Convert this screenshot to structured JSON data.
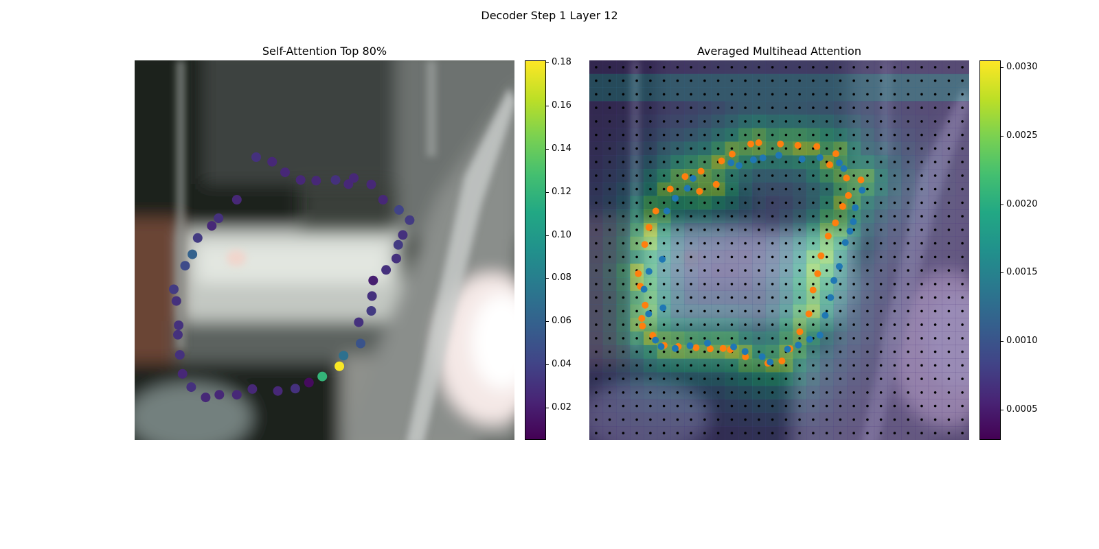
{
  "figure": {
    "suptitle": "Decoder Step 1 Layer 12"
  },
  "chart_data": [
    {
      "type": "scatter",
      "title": "Self-Attention Top 80%",
      "background": "blurred photo crop (car window / door)",
      "colormap": "viridis",
      "colorbar": {
        "min": 0.005,
        "max": 0.181,
        "ticks": [
          0.02,
          0.04,
          0.06,
          0.08,
          0.1,
          0.12,
          0.14,
          0.16,
          0.18
        ],
        "tick_labels": [
          "0.02",
          "0.04",
          "0.06",
          "0.08",
          "0.10",
          "0.12",
          "0.14",
          "0.16",
          "0.18"
        ]
      },
      "xlim": [
        0,
        100
      ],
      "ylim": [
        0,
        100
      ],
      "points": [
        {
          "x": 32.0,
          "y": 74.5,
          "v": 0.03
        },
        {
          "x": 36.2,
          "y": 73.3,
          "v": 0.025
        },
        {
          "x": 39.6,
          "y": 70.5,
          "v": 0.025
        },
        {
          "x": 43.7,
          "y": 68.5,
          "v": 0.025
        },
        {
          "x": 47.8,
          "y": 68.3,
          "v": 0.025
        },
        {
          "x": 52.9,
          "y": 68.5,
          "v": 0.03
        },
        {
          "x": 56.3,
          "y": 67.4,
          "v": 0.025
        },
        {
          "x": 57.7,
          "y": 69.0,
          "v": 0.025
        },
        {
          "x": 62.3,
          "y": 67.3,
          "v": 0.025
        },
        {
          "x": 65.4,
          "y": 63.3,
          "v": 0.025
        },
        {
          "x": 69.6,
          "y": 60.6,
          "v": 0.04
        },
        {
          "x": 72.4,
          "y": 57.9,
          "v": 0.035
        },
        {
          "x": 70.6,
          "y": 54.0,
          "v": 0.03
        },
        {
          "x": 69.4,
          "y": 51.4,
          "v": 0.035
        },
        {
          "x": 68.9,
          "y": 47.8,
          "v": 0.03
        },
        {
          "x": 66.2,
          "y": 44.8,
          "v": 0.03
        },
        {
          "x": 62.8,
          "y": 42.0,
          "v": 0.02
        },
        {
          "x": 62.5,
          "y": 37.9,
          "v": 0.03
        },
        {
          "x": 62.3,
          "y": 34.0,
          "v": 0.035
        },
        {
          "x": 59.0,
          "y": 31.0,
          "v": 0.03
        },
        {
          "x": 59.5,
          "y": 25.4,
          "v": 0.05
        },
        {
          "x": 55.0,
          "y": 22.2,
          "v": 0.07
        },
        {
          "x": 53.9,
          "y": 19.4,
          "v": 0.18
        },
        {
          "x": 49.4,
          "y": 16.7,
          "v": 0.12
        },
        {
          "x": 45.9,
          "y": 15.1,
          "v": 0.01
        },
        {
          "x": 42.3,
          "y": 13.5,
          "v": 0.03
        },
        {
          "x": 37.7,
          "y": 12.9,
          "v": 0.025
        },
        {
          "x": 31.0,
          "y": 13.4,
          "v": 0.025
        },
        {
          "x": 26.9,
          "y": 11.9,
          "v": 0.025
        },
        {
          "x": 22.3,
          "y": 11.9,
          "v": 0.025
        },
        {
          "x": 18.7,
          "y": 11.2,
          "v": 0.025
        },
        {
          "x": 14.9,
          "y": 13.9,
          "v": 0.03
        },
        {
          "x": 12.6,
          "y": 17.4,
          "v": 0.025
        },
        {
          "x": 11.9,
          "y": 22.4,
          "v": 0.03
        },
        {
          "x": 11.4,
          "y": 27.7,
          "v": 0.03
        },
        {
          "x": 11.6,
          "y": 30.2,
          "v": 0.03
        },
        {
          "x": 11.0,
          "y": 36.6,
          "v": 0.03
        },
        {
          "x": 10.3,
          "y": 39.7,
          "v": 0.035
        },
        {
          "x": 13.3,
          "y": 45.9,
          "v": 0.045
        },
        {
          "x": 15.2,
          "y": 48.9,
          "v": 0.06
        },
        {
          "x": 16.6,
          "y": 53.2,
          "v": 0.035
        },
        {
          "x": 20.3,
          "y": 56.4,
          "v": 0.025
        },
        {
          "x": 22.1,
          "y": 58.4,
          "v": 0.03
        },
        {
          "x": 26.9,
          "y": 63.3,
          "v": 0.025
        }
      ]
    },
    {
      "type": "heatmap",
      "title": "Averaged Multihead Attention",
      "background": "same photo crop blended with attention heatmap",
      "colormap": "viridis",
      "colorbar": {
        "min": 0.00028,
        "max": 0.00305,
        "ticks": [
          0.0005,
          0.001,
          0.0015,
          0.002,
          0.0025,
          0.003
        ],
        "tick_labels": [
          "0.0005",
          "0.0010",
          "0.0015",
          "0.0020",
          "0.0025",
          "0.0030"
        ]
      },
      "grid_size": 28,
      "xlim": [
        0,
        100
      ],
      "ylim": [
        0,
        100
      ],
      "orange_points": [
        {
          "x": 34.8,
          "y": 73.5
        },
        {
          "x": 37.6,
          "y": 75.3
        },
        {
          "x": 42.5,
          "y": 78.0
        },
        {
          "x": 44.6,
          "y": 78.3
        },
        {
          "x": 50.3,
          "y": 78.0
        },
        {
          "x": 54.9,
          "y": 77.6
        },
        {
          "x": 59.9,
          "y": 77.3
        },
        {
          "x": 64.9,
          "y": 75.4
        },
        {
          "x": 63.3,
          "y": 72.5
        },
        {
          "x": 67.7,
          "y": 69.0
        },
        {
          "x": 71.5,
          "y": 68.5
        },
        {
          "x": 68.2,
          "y": 64.4
        },
        {
          "x": 66.7,
          "y": 61.5
        },
        {
          "x": 64.8,
          "y": 57.2
        },
        {
          "x": 62.9,
          "y": 53.7
        },
        {
          "x": 61.0,
          "y": 48.5
        },
        {
          "x": 60.1,
          "y": 43.8
        },
        {
          "x": 58.9,
          "y": 39.5
        },
        {
          "x": 57.8,
          "y": 33.2
        },
        {
          "x": 55.4,
          "y": 28.5
        },
        {
          "x": 52.8,
          "y": 24.0
        },
        {
          "x": 50.7,
          "y": 20.8
        },
        {
          "x": 47.0,
          "y": 20.2
        },
        {
          "x": 41.1,
          "y": 21.9
        },
        {
          "x": 37.1,
          "y": 23.8
        },
        {
          "x": 35.2,
          "y": 24.1
        },
        {
          "x": 31.8,
          "y": 24.0
        },
        {
          "x": 28.1,
          "y": 24.3
        },
        {
          "x": 23.4,
          "y": 24.6
        },
        {
          "x": 19.7,
          "y": 24.9
        },
        {
          "x": 16.7,
          "y": 27.5
        },
        {
          "x": 14.0,
          "y": 30.0
        },
        {
          "x": 13.8,
          "y": 32.0
        },
        {
          "x": 14.7,
          "y": 35.5
        },
        {
          "x": 13.4,
          "y": 40.5
        },
        {
          "x": 12.9,
          "y": 43.8
        },
        {
          "x": 14.6,
          "y": 51.5
        },
        {
          "x": 15.7,
          "y": 56.0
        },
        {
          "x": 17.5,
          "y": 60.3
        },
        {
          "x": 21.3,
          "y": 66.1
        },
        {
          "x": 25.2,
          "y": 69.4
        },
        {
          "x": 29.4,
          "y": 70.8
        },
        {
          "x": 33.4,
          "y": 67.3
        },
        {
          "x": 29.0,
          "y": 65.5
        }
      ],
      "blue_points": [
        {
          "x": 37.3,
          "y": 73.0
        },
        {
          "x": 39.4,
          "y": 72.3
        },
        {
          "x": 43.2,
          "y": 73.8
        },
        {
          "x": 45.7,
          "y": 74.3
        },
        {
          "x": 49.9,
          "y": 75.0
        },
        {
          "x": 56.0,
          "y": 74.0
        },
        {
          "x": 60.7,
          "y": 74.4
        },
        {
          "x": 65.8,
          "y": 73.0
        },
        {
          "x": 67.0,
          "y": 71.5
        },
        {
          "x": 71.8,
          "y": 65.8
        },
        {
          "x": 70.0,
          "y": 61.2
        },
        {
          "x": 69.5,
          "y": 57.5
        },
        {
          "x": 68.6,
          "y": 55.0
        },
        {
          "x": 67.4,
          "y": 52.0
        },
        {
          "x": 65.8,
          "y": 45.7
        },
        {
          "x": 64.4,
          "y": 42.0
        },
        {
          "x": 63.5,
          "y": 37.5
        },
        {
          "x": 62.1,
          "y": 32.8
        },
        {
          "x": 60.7,
          "y": 27.6
        },
        {
          "x": 58.0,
          "y": 26.5
        },
        {
          "x": 55.0,
          "y": 25.0
        },
        {
          "x": 52.2,
          "y": 23.9
        },
        {
          "x": 47.6,
          "y": 20.5
        },
        {
          "x": 45.5,
          "y": 21.9
        },
        {
          "x": 41.0,
          "y": 23.3
        },
        {
          "x": 38.0,
          "y": 24.5
        },
        {
          "x": 31.1,
          "y": 25.5
        },
        {
          "x": 26.5,
          "y": 24.8
        },
        {
          "x": 22.6,
          "y": 24.1
        },
        {
          "x": 18.9,
          "y": 24.6
        },
        {
          "x": 17.4,
          "y": 26.3
        },
        {
          "x": 15.6,
          "y": 33.2
        },
        {
          "x": 19.4,
          "y": 34.8
        },
        {
          "x": 14.4,
          "y": 39.7
        },
        {
          "x": 15.7,
          "y": 44.4
        },
        {
          "x": 19.2,
          "y": 47.6
        },
        {
          "x": 20.4,
          "y": 60.3
        },
        {
          "x": 22.6,
          "y": 63.7
        },
        {
          "x": 25.8,
          "y": 66.3
        },
        {
          "x": 27.3,
          "y": 68.9
        }
      ]
    }
  ],
  "colors": {
    "orange": "#ff7f0e",
    "blue": "#1f77b4",
    "grid_dot": "#000000"
  }
}
